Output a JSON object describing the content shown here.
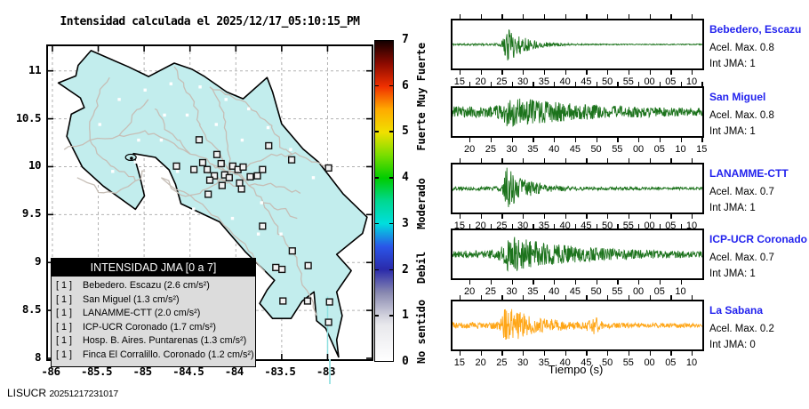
{
  "figure": {
    "title": "Intensidad calculada el 2025/12/17_05:10:15_PM",
    "credit_org": "LISUCR",
    "credit_num": "20251217231017"
  },
  "chart_data": {
    "type": "map+seismograms",
    "map": {
      "x_ticks": [
        "-86",
        "-85.5",
        "-85",
        "-84.5",
        "-84",
        "-83.5",
        "-83"
      ],
      "y_ticks": [
        "11",
        "10.5",
        "10",
        "9.5",
        "9",
        "8.5",
        "8"
      ],
      "lon_range": [
        -86.05,
        -82.52
      ],
      "lat_range": [
        8.0,
        11.26
      ],
      "land_color": "#c2eded",
      "road_color": "#c6beb6",
      "grid_color": "#b2b2b2",
      "stations": [
        [
          0.467,
          0.299
        ],
        [
          0.522,
          0.346
        ],
        [
          0.478,
          0.372
        ],
        [
          0.492,
          0.394
        ],
        [
          0.535,
          0.375
        ],
        [
          0.546,
          0.411
        ],
        [
          0.571,
          0.383
        ],
        [
          0.587,
          0.394
        ],
        [
          0.603,
          0.386
        ],
        [
          0.56,
          0.42
        ],
        [
          0.514,
          0.414
        ],
        [
          0.5,
          0.428
        ],
        [
          0.538,
          0.445
        ],
        [
          0.592,
          0.437
        ],
        [
          0.625,
          0.417
        ],
        [
          0.647,
          0.414
        ],
        [
          0.663,
          0.394
        ],
        [
          0.682,
          0.318
        ],
        [
          0.753,
          0.363
        ],
        [
          0.867,
          0.389
        ],
        [
          0.663,
          0.575
        ],
        [
          0.755,
          0.654
        ],
        [
          0.804,
          0.701
        ],
        [
          0.704,
          0.707
        ],
        [
          0.723,
          0.713
        ],
        [
          0.726,
          0.814
        ],
        [
          0.802,
          0.814
        ],
        [
          0.87,
          0.817
        ],
        [
          0.867,
          0.882
        ],
        [
          0.598,
          0.456
        ],
        [
          0.451,
          0.394
        ],
        [
          0.397,
          0.383
        ],
        [
          0.495,
          0.473
        ]
      ],
      "towns": [
        [
          0.1,
          0.45
        ],
        [
          0.16,
          0.25
        ],
        [
          0.22,
          0.17
        ],
        [
          0.3,
          0.14
        ],
        [
          0.38,
          0.12
        ],
        [
          0.47,
          0.13
        ],
        [
          0.55,
          0.17
        ],
        [
          0.62,
          0.2
        ],
        [
          0.68,
          0.26
        ],
        [
          0.75,
          0.33
        ],
        [
          0.6,
          0.3
        ],
        [
          0.52,
          0.25
        ],
        [
          0.43,
          0.22
        ],
        [
          0.35,
          0.3
        ],
        [
          0.27,
          0.37
        ],
        [
          0.2,
          0.4
        ],
        [
          0.33,
          0.47
        ],
        [
          0.45,
          0.52
        ],
        [
          0.57,
          0.55
        ],
        [
          0.66,
          0.5
        ],
        [
          0.72,
          0.6
        ],
        [
          0.62,
          0.68
        ],
        [
          0.52,
          0.63
        ],
        [
          0.47,
          0.75
        ],
        [
          0.57,
          0.8
        ],
        [
          0.4,
          0.4
        ],
        [
          0.82,
          0.42
        ],
        [
          0.28,
          0.3
        ],
        [
          0.36,
          0.22
        ],
        [
          0.65,
          0.6
        ]
      ]
    },
    "colorbar": {
      "tick_labels": [
        "0",
        "1",
        "2",
        "3",
        "4",
        "5",
        "6",
        "7"
      ],
      "categories": [
        {
          "label": "No sentido",
          "pos": 0.65
        },
        {
          "label": "Debil",
          "pos": 2.05
        },
        {
          "label": "Moderado",
          "pos": 3.45
        },
        {
          "label": "Fuerte",
          "pos": 5.0
        },
        {
          "label": "Muy Fuerte",
          "pos": 6.25
        }
      ],
      "gradient": [
        {
          "pos": 0.0,
          "color": "#ffffff"
        },
        {
          "pos": 0.8,
          "color": "#e8e8ec"
        },
        {
          "pos": 1.0,
          "color": "#d0d0dc"
        },
        {
          "pos": 1.5,
          "color": "#8888b0"
        },
        {
          "pos": 2.0,
          "color": "#2a2aaa"
        },
        {
          "pos": 2.5,
          "color": "#2a55e8"
        },
        {
          "pos": 3.0,
          "color": "#00dede"
        },
        {
          "pos": 3.5,
          "color": "#00d890"
        },
        {
          "pos": 4.0,
          "color": "#00cc00"
        },
        {
          "pos": 4.5,
          "color": "#7ade00"
        },
        {
          "pos": 5.0,
          "color": "#f0e000"
        },
        {
          "pos": 5.5,
          "color": "#ffaa00"
        },
        {
          "pos": 6.0,
          "color": "#f03000"
        },
        {
          "pos": 6.5,
          "color": "#8c0a00"
        },
        {
          "pos": 7.0,
          "color": "#140000"
        }
      ]
    },
    "legend": {
      "header": "INTENSIDAD JMA [0 a 7]",
      "items": [
        {
          "intensity": "[ 1 ]",
          "label": "Bebedero. Escazu (2.6 cm/s²)"
        },
        {
          "intensity": "[ 1 ]",
          "label": "San Miguel (1.3 cm/s²)"
        },
        {
          "intensity": "[ 1 ]",
          "label": "LANAMME-CTT (2.0 cm/s²)"
        },
        {
          "intensity": "[ 1 ]",
          "label": "ICP-UCR Coronado (1.7 cm/s²)"
        },
        {
          "intensity": "[ 1 ]",
          "label": "Hosp. B. Aires. Puntarenas (1.3 cm/s²)"
        },
        {
          "intensity": "[ 1 ]",
          "label": "Finca El Corralillo. Coronado (1.2 cm/s²)"
        }
      ]
    },
    "seismograms": {
      "xlabel": "Tiempo (s)",
      "panels": [
        {
          "name": "Bebedero, Escazu",
          "acel": "Acel. Max. 0.8",
          "jma": "Int JMA: 1",
          "color": "#1c731c",
          "seed": 11,
          "tick_labels": [
            "15",
            "20",
            "25",
            "30",
            "35",
            "40",
            "45",
            "50",
            "55",
            "00",
            "05",
            "10"
          ],
          "env": {
            "base": 0.045,
            "A": 0.97,
            "atk": 0.008,
            "tau": 0.07,
            "end": 0.022,
            "t0": 0.214
          }
        },
        {
          "name": "San Miguel",
          "acel": "Acel. Max. 0.8",
          "jma": "Int JMA: 1",
          "color": "#1c731c",
          "seed": 23,
          "tick_labels": [
            "20",
            "25",
            "30",
            "35",
            "40",
            "45",
            "50",
            "55",
            "00",
            "05",
            "10",
            "15"
          ],
          "env": {
            "base": 0.26,
            "A": 0.6,
            "atk": 0.02,
            "tau": 0.3,
            "end": 0.14,
            "t0": 0.225
          }
        },
        {
          "name": "LANAMME-CTT",
          "acel": "Acel. Max. 0.7",
          "jma": "Int JMA: 1",
          "color": "#1c731c",
          "seed": 37,
          "tick_labels": [
            "15",
            "20",
            "25",
            "30",
            "35",
            "40",
            "45",
            "50",
            "55",
            "00",
            "05",
            "10"
          ],
          "env": {
            "base": 0.09,
            "A": 0.95,
            "atk": 0.008,
            "tau": 0.08,
            "end": 0.065,
            "t0": 0.214
          }
        },
        {
          "name": "ICP-UCR Coronado",
          "acel": "Acel. Max. 0.7",
          "jma": "Int JMA: 1",
          "color": "#1c731c",
          "seed": 51,
          "tick_labels": [
            "20",
            "25",
            "30",
            "35",
            "40",
            "45",
            "50",
            "55",
            "00",
            "05",
            "10"
          ],
          "env": {
            "base": 0.17,
            "A": 0.75,
            "atk": 0.02,
            "tau": 0.24,
            "end": 0.13,
            "t0": 0.225
          }
        },
        {
          "name": "La Sabana",
          "acel": "Acel. Max. 0.2",
          "jma": "Int JMA: 0",
          "color": "#ffa617",
          "seed": 73,
          "tick_labels": [
            "15",
            "20",
            "25",
            "30",
            "35",
            "40",
            "45",
            "50",
            "55",
            "00",
            "05",
            "10"
          ],
          "env": {
            "base": 0.14,
            "A": 0.82,
            "atk": 0.012,
            "tau": 0.13,
            "end": 0.1,
            "t0": 0.21,
            "burst2": {
              "t0": 0.565,
              "A": 0.26,
              "w": 0.018
            }
          }
        }
      ]
    }
  }
}
